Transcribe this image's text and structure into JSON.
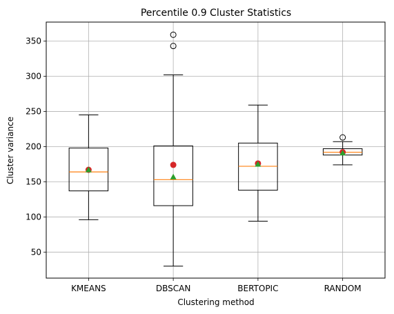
{
  "chart_data": {
    "type": "box",
    "title": "Percentile 0.9 Cluster Statistics",
    "xlabel": "Clustering method",
    "ylabel": "Cluster variance",
    "categories": [
      "KMEANS",
      "DBSCAN",
      "BERTOPIC",
      "RANDOM"
    ],
    "ylim": [
      13,
      377
    ],
    "yticks": [
      50,
      100,
      150,
      200,
      250,
      300,
      350
    ],
    "grid": true,
    "boxes": [
      {
        "category": "KMEANS",
        "whisker_low": 96,
        "q1": 137,
        "median": 164,
        "q3": 198,
        "whisker_high": 245,
        "mean_circle": 167,
        "mean_triangle": 167,
        "outliers": []
      },
      {
        "category": "DBSCAN",
        "whisker_low": 30,
        "q1": 116,
        "median": 153,
        "q3": 201,
        "whisker_high": 302,
        "mean_circle": 174,
        "mean_triangle": 157,
        "outliers": [
          343,
          359
        ]
      },
      {
        "category": "BERTOPIC",
        "whisker_low": 94,
        "q1": 138,
        "median": 172,
        "q3": 205,
        "whisker_high": 259,
        "mean_circle": 176,
        "mean_triangle": 175,
        "outliers": []
      },
      {
        "category": "RANDOM",
        "whisker_low": 174,
        "q1": 188,
        "median": 192,
        "q3": 197,
        "whisker_high": 207,
        "mean_circle": 192,
        "mean_triangle": 191,
        "outliers": [
          213
        ]
      }
    ],
    "colors": {
      "median": "#ff7f0e",
      "mean_circle": "#d62728",
      "mean_triangle": "#2ca02c",
      "box": "#000000",
      "grid": "#b0b0b0"
    }
  }
}
